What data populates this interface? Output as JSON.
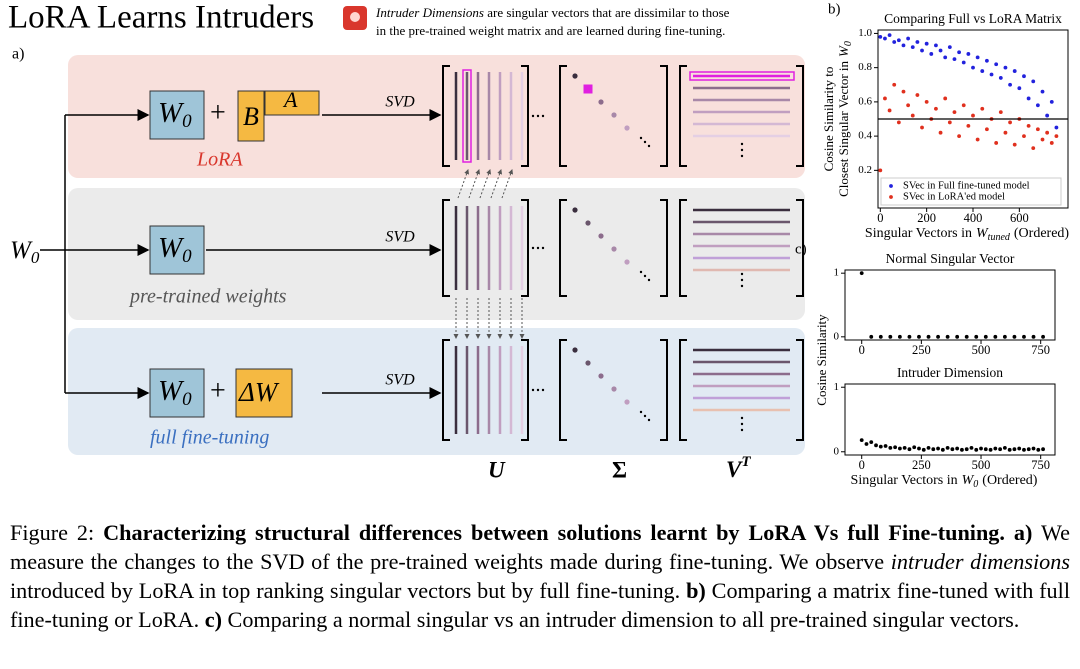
{
  "header": {
    "title": "LoRA Learns Intruders",
    "annotation": [
      "Intruder Dimensions",
      " are singular vectors that are dissimilar to those",
      "in the pre-trained weight matrix and are learned during fine-tuning."
    ]
  },
  "diagram": {
    "panel": "a)",
    "input": {
      "var": "W",
      "sub": "0"
    },
    "rows": [
      {
        "w": "W",
        "sub": "0",
        "plus": "+",
        "b": "B",
        "a": "A",
        "label": "LoRA",
        "svd": "SVD"
      },
      {
        "w": "W",
        "sub": "0",
        "label": "pre-trained weights",
        "svd": "SVD"
      },
      {
        "w": "W",
        "sub": "0",
        "plus": "+",
        "dw": "ΔW",
        "label": "full fine-tuning",
        "svd": "SVD"
      }
    ],
    "columns": {
      "u": "U",
      "sigma": "Σ",
      "v": "V",
      "v_sup": "T"
    }
  },
  "chart_data": [
    {
      "type": "scatter",
      "panel": "b)",
      "title": "Comparing Full vs LoRA Matrix",
      "x": [
        0,
        20,
        40,
        60,
        80,
        100,
        120,
        140,
        160,
        180,
        200,
        220,
        240,
        260,
        280,
        300,
        320,
        340,
        360,
        380,
        400,
        420,
        440,
        460,
        480,
        500,
        520,
        540,
        560,
        580,
        600,
        620,
        640,
        660,
        680,
        700,
        720,
        740,
        760
      ],
      "series": [
        {
          "name": "SVec in Full fine-tuned model",
          "color": "#2222dd",
          "values": [
            0.98,
            0.97,
            0.99,
            0.95,
            0.96,
            0.93,
            0.97,
            0.92,
            0.95,
            0.9,
            0.94,
            0.88,
            0.93,
            0.9,
            0.86,
            0.92,
            0.85,
            0.89,
            0.83,
            0.88,
            0.8,
            0.86,
            0.78,
            0.84,
            0.76,
            0.82,
            0.74,
            0.8,
            0.7,
            0.78,
            0.68,
            0.75,
            0.62,
            0.72,
            0.58,
            0.66,
            0.52,
            0.6,
            0.45
          ]
        },
        {
          "name": "SVec in LoRA'ed model",
          "color": "#e0301e",
          "values": [
            0.2,
            0.62,
            0.55,
            0.7,
            0.48,
            0.66,
            0.58,
            0.52,
            0.64,
            0.45,
            0.6,
            0.5,
            0.56,
            0.42,
            0.62,
            0.48,
            0.54,
            0.4,
            0.58,
            0.46,
            0.52,
            0.38,
            0.56,
            0.44,
            0.5,
            0.36,
            0.54,
            0.42,
            0.48,
            0.35,
            0.5,
            0.4,
            0.46,
            0.33,
            0.44,
            0.38,
            0.42,
            0.36,
            0.4
          ]
        }
      ],
      "hline": 0.5,
      "xlim": [
        -10,
        810
      ],
      "ylim": [
        -0.02,
        1.02
      ],
      "xticks": [
        0,
        200,
        400,
        600
      ],
      "yticks": [
        0.2,
        0.4,
        0.6,
        0.8,
        {
          "value": 1,
          "label": "1.0"
        }
      ],
      "xlabel": {
        "text": "Singular Vectors in",
        "var": "W",
        "sub": "tuned",
        "tail": "(Ordered)"
      },
      "ylabel": {
        "lines": [
          "Cosine Similarity to",
          "Closest Singular Vector in"
        ],
        "var": "W",
        "sub": "0"
      },
      "legend": "lower left"
    },
    {
      "type": "scatter",
      "panel": "c)",
      "title": "Normal Singular Vector",
      "x": [
        0,
        40,
        80,
        120,
        160,
        200,
        240,
        280,
        320,
        360,
        400,
        440,
        480,
        520,
        560,
        600,
        640,
        680,
        720,
        760
      ],
      "values": [
        1,
        0,
        0,
        0,
        0,
        0,
        0,
        0,
        0,
        0,
        0,
        0,
        0,
        0,
        0,
        0,
        0,
        0,
        0,
        0
      ],
      "color": "#000000",
      "xlim": [
        -70,
        810
      ],
      "ylim": [
        -0.05,
        1.05
      ],
      "xticks": [
        0,
        250,
        500,
        750
      ],
      "yticks": [
        0,
        1
      ],
      "ylabel": {
        "lines": [
          "Cosine Similarity"
        ]
      }
    },
    {
      "type": "scatter",
      "title": "Intruder Dimension",
      "x": [
        0,
        20,
        40,
        60,
        80,
        100,
        120,
        140,
        160,
        180,
        200,
        220,
        240,
        260,
        280,
        300,
        320,
        340,
        360,
        380,
        400,
        420,
        440,
        460,
        480,
        500,
        520,
        540,
        560,
        580,
        600,
        620,
        640,
        660,
        680,
        700,
        720,
        740,
        760
      ],
      "values": [
        0.18,
        0.12,
        0.15,
        0.1,
        0.08,
        0.09,
        0.06,
        0.07,
        0.05,
        0.06,
        0.04,
        0.07,
        0.05,
        0.03,
        0.06,
        0.04,
        0.05,
        0.03,
        0.06,
        0.04,
        0.05,
        0.03,
        0.04,
        0.06,
        0.03,
        0.05,
        0.04,
        0.03,
        0.05,
        0.04,
        0.06,
        0.03,
        0.04,
        0.05,
        0.03,
        0.04,
        0.05,
        0.03,
        0.04
      ],
      "color": "#000000",
      "xlim": [
        -70,
        810
      ],
      "ylim": [
        -0.05,
        1.05
      ],
      "xticks": [
        0,
        250,
        500,
        750
      ],
      "yticks": [
        0,
        1
      ],
      "xlabel": {
        "text": "Singular Vectors in",
        "var": "W",
        "sub": "0",
        "tail": "(Ordered)"
      }
    }
  ],
  "caption": [
    "Figure 2: ",
    "Characterizing structural differences between solutions learnt by LoRA Vs full Fine-tuning.",
    " ",
    "a)",
    " We measure the changes to the SVD of the pre-trained weights made during fine-tuning. We observe ",
    "intruder dimensions",
    " introduced by LoRA in top ranking singular vectors but by full fine-tuning. ",
    "b)",
    " Comparing a matrix fine-tuned with full fine-tuning or LoRA. ",
    "c)",
    " Comparing a normal singular vs an intruder dimension to all pre-trained singular vectors."
  ]
}
